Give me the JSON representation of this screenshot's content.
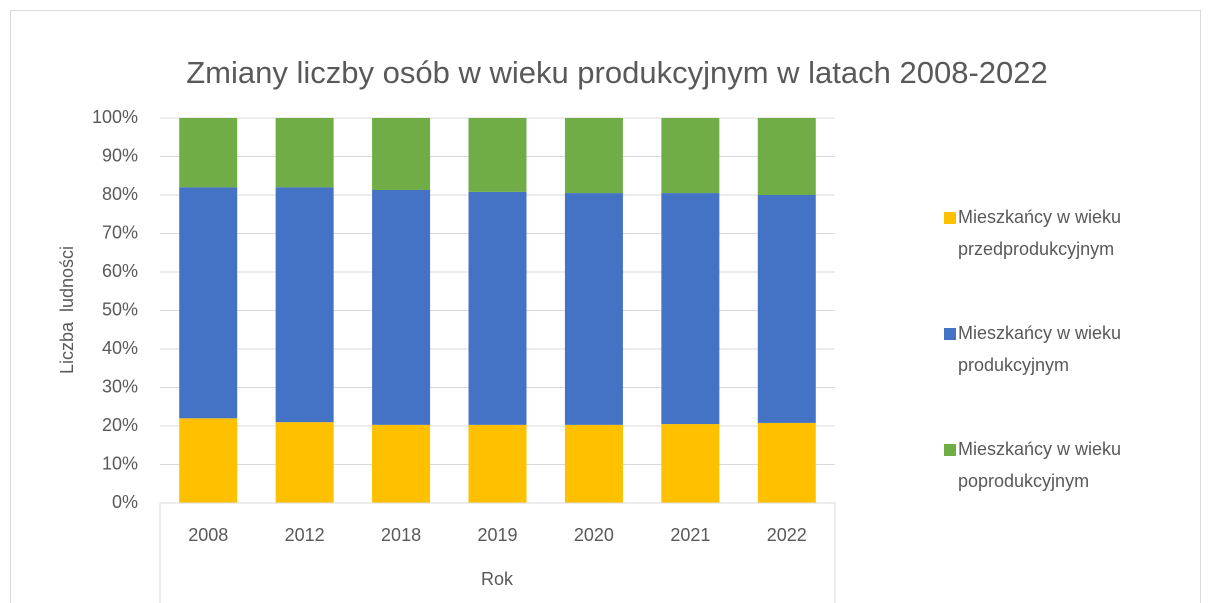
{
  "chart_data": {
    "type": "stacked_bar_100",
    "title": "Zmiany liczby osób w wieku produkcyjnym w latach 2008-2022",
    "x_label": "Rok",
    "y_label": "Liczba  ludności",
    "categories": [
      "2008",
      "2012",
      "2018",
      "2019",
      "2020",
      "2021",
      "2022"
    ],
    "series": [
      {
        "name": "Mieszkańcy w wieku przedprodukcyjnym",
        "color": "#ffc000",
        "values": [
          22,
          21,
          20.3,
          20.3,
          20.3,
          20.5,
          20.8
        ]
      },
      {
        "name": "Mieszkańcy w wieku produkcyjnym",
        "color": "#4472c4",
        "values": [
          60,
          61,
          61,
          60.5,
          60.2,
          60,
          59.2
        ]
      },
      {
        "name": "Mieszkańcy w wieku poprodukcyjnym",
        "color": "#70ad47",
        "values": [
          18,
          18,
          18.7,
          19.2,
          19.5,
          19.5,
          20
        ]
      }
    ],
    "ylim": [
      0,
      100
    ],
    "yticks": [
      {
        "value": 0,
        "label": "0%"
      },
      {
        "value": 10,
        "label": "10%"
      },
      {
        "value": 20,
        "label": "20%"
      },
      {
        "value": 30,
        "label": "30%"
      },
      {
        "value": 40,
        "label": "40%"
      },
      {
        "value": 50,
        "label": "50%"
      },
      {
        "value": 60,
        "label": "60%"
      },
      {
        "value": 70,
        "label": "70%"
      },
      {
        "value": 80,
        "label": "80%"
      },
      {
        "value": 90,
        "label": "90%"
      },
      {
        "value": 100,
        "label": "100%"
      }
    ],
    "grid": true,
    "legend": "right"
  }
}
